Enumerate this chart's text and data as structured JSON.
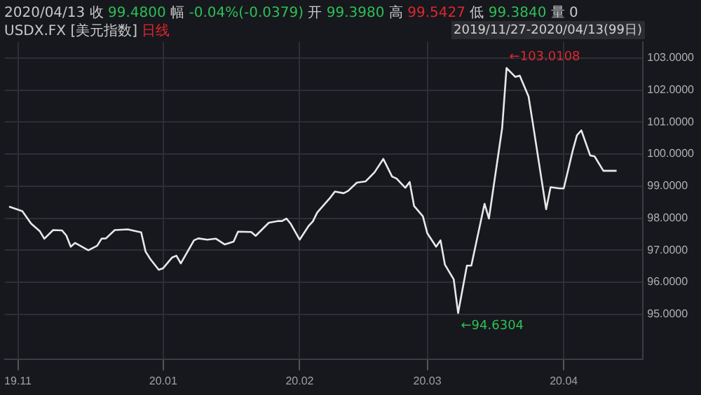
{
  "chart_data": {
    "type": "line",
    "title": "2020/04/13 收 99.4800 幅 -0.04%(-0.0379) 开 99.3980 高 99.5427 低 99.3840 量 0",
    "subtitle": "USDX.FX [美元指数] 日线",
    "annotations": [
      "2019/11/27-2020/04/13(99日)",
      "←103.0108",
      "←94.6304"
    ],
    "x": [
      "2019-11-27",
      "2019-11-30",
      "2019-12-02",
      "2019-12-04",
      "2019-12-05",
      "2019-12-07",
      "2019-12-09",
      "2019-12-10",
      "2019-12-11",
      "2019-12-12",
      "2019-12-15",
      "2019-12-17",
      "2019-12-18",
      "2019-12-19",
      "2019-12-21",
      "2019-12-24",
      "2019-12-25",
      "2019-12-27",
      "2019-12-28",
      "2019-12-29",
      "2019-12-31",
      "2020-01-01",
      "2020-01-03",
      "2020-01-04",
      "2020-01-05",
      "2020-01-08",
      "2020-01-09",
      "2020-01-11",
      "2020-01-13",
      "2020-01-15",
      "2020-01-17",
      "2020-01-18",
      "2020-01-21",
      "2020-01-22",
      "2020-01-25",
      "2020-01-27",
      "2020-01-28",
      "2020-01-29",
      "2020-01-30",
      "2020-02-01",
      "2020-02-03",
      "2020-02-04",
      "2020-02-05",
      "2020-02-08",
      "2020-02-09",
      "2020-02-11",
      "2020-02-12",
      "2020-02-14",
      "2020-02-16",
      "2020-02-18",
      "2020-02-20",
      "2020-02-22",
      "2020-02-23",
      "2020-02-25",
      "2020-02-26",
      "2020-02-27",
      "2020-02-29",
      "2020-03-01",
      "2020-03-03",
      "2020-03-04",
      "2020-03-05",
      "2020-03-07",
      "2020-03-08",
      "2020-03-10",
      "2020-03-11",
      "2020-03-14",
      "2020-03-15",
      "2020-03-18",
      "2020-03-19",
      "2020-03-21",
      "2020-03-22",
      "2020-03-24",
      "2020-03-25",
      "2020-03-28",
      "2020-03-29",
      "2020-03-31",
      "2020-04-01",
      "2020-04-03",
      "2020-04-04",
      "2020-04-05",
      "2020-04-07",
      "2020-04-08",
      "2020-04-10",
      "2020-04-11",
      "2020-04-13"
    ],
    "series": [
      {
        "color": "#e8e8e8",
        "values": [
          98.36,
          98.22,
          97.83,
          97.59,
          97.36,
          97.63,
          97.62,
          97.46,
          97.11,
          97.23,
          97.0,
          97.14,
          97.36,
          97.37,
          97.63,
          97.65,
          97.62,
          97.56,
          96.96,
          96.74,
          96.39,
          96.44,
          96.77,
          96.83,
          96.59,
          97.31,
          97.37,
          97.33,
          97.36,
          97.18,
          97.27,
          97.58,
          97.57,
          97.45,
          97.86,
          97.91,
          97.91,
          97.99,
          97.82,
          97.33,
          97.75,
          97.9,
          98.18,
          98.65,
          98.83,
          98.78,
          98.85,
          99.11,
          99.15,
          99.43,
          99.85,
          99.3,
          99.24,
          98.95,
          99.13,
          98.38,
          98.06,
          97.53,
          97.11,
          97.31,
          96.55,
          96.09,
          95.04,
          96.52,
          96.52,
          98.45,
          97.99,
          100.81,
          102.69,
          102.41,
          102.45,
          101.8,
          100.94,
          98.28,
          98.97,
          98.93,
          98.93,
          100.09,
          100.59,
          100.74,
          99.96,
          99.93,
          99.48,
          99.48,
          99.48
        ]
      }
    ],
    "xlim": [
      "2019-11-26",
      "2020-04-19"
    ],
    "xticks": [
      {
        "value": "2019-11-29",
        "label": "19.11"
      },
      {
        "value": "2020-01-01",
        "label": "20.01"
      },
      {
        "value": "2020-02-01",
        "label": "20.02"
      },
      {
        "value": "2020-03-01",
        "label": "20.03"
      },
      {
        "value": "2020-04-01",
        "label": "20.04"
      }
    ],
    "ylim": [
      93.6,
      103.5
    ],
    "yticks": [
      {
        "value": 95,
        "label": "95.0000"
      },
      {
        "value": 96,
        "label": "96.0000"
      },
      {
        "value": 97,
        "label": "97.0000"
      },
      {
        "value": 98,
        "label": "98.0000"
      },
      {
        "value": 99,
        "label": "99.0000"
      },
      {
        "value": 100,
        "label": "100.0000"
      },
      {
        "value": 101,
        "label": "101.0000"
      },
      {
        "value": 102,
        "label": "102.0000"
      },
      {
        "value": 103,
        "label": "103.0000"
      }
    ],
    "grid": true,
    "legend": false,
    "marker": "none",
    "line_style": "solid"
  }
}
